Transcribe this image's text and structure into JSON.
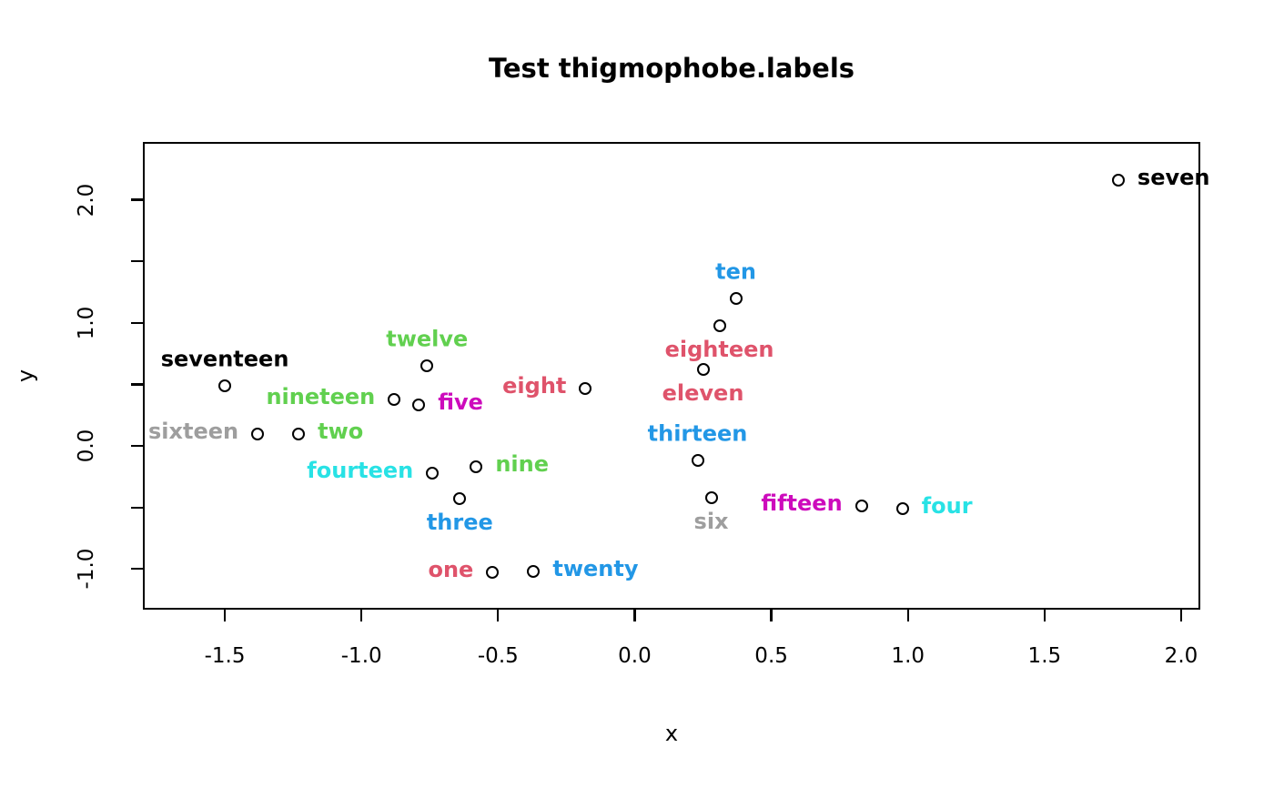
{
  "chart_data": {
    "type": "scatter",
    "title": "Test thigmophobe.labels",
    "xlabel": "x",
    "ylabel": "y",
    "xlim": [
      -1.8,
      2.07
    ],
    "ylim": [
      -1.33,
      2.47
    ],
    "grid": false,
    "legend": "none",
    "marker": "open-circle",
    "marker_color": "#000000",
    "x_ticks": [
      -1.5,
      -1.0,
      -0.5,
      0.0,
      0.5,
      1.0,
      1.5,
      2.0
    ],
    "x_tick_labels": [
      "-1.5",
      "-1.0",
      "-0.5",
      "0.0",
      "0.5",
      "1.0",
      "1.5",
      "2.0"
    ],
    "y_ticks": [
      -1.0,
      -0.5,
      0.0,
      0.5,
      1.0,
      1.5,
      2.0
    ],
    "y_tick_labels": [
      "-1.0",
      "",
      "0.0",
      "",
      "1.0",
      "",
      "2.0"
    ],
    "points": [
      {
        "label": "one",
        "x": -0.52,
        "y": -1.03,
        "color": "#DF536B",
        "label_pos": "left"
      },
      {
        "label": "two",
        "x": -1.23,
        "y": 0.1,
        "color": "#61D04F",
        "label_pos": "right"
      },
      {
        "label": "three",
        "x": -0.64,
        "y": -0.43,
        "color": "#2297E6",
        "label_pos": "below"
      },
      {
        "label": "four",
        "x": 0.98,
        "y": -0.51,
        "color": "#28E2E5",
        "label_pos": "right"
      },
      {
        "label": "five",
        "x": -0.79,
        "y": 0.33,
        "color": "#CD0BBC",
        "label_pos": "right"
      },
      {
        "label": "six",
        "x": 0.28,
        "y": -0.42,
        "color": "#9E9E9E",
        "label_pos": "below"
      },
      {
        "label": "seven",
        "x": 1.77,
        "y": 2.16,
        "color": "#000000",
        "label_pos": "right"
      },
      {
        "label": "eight",
        "x": -0.18,
        "y": 0.47,
        "color": "#DF536B",
        "label_pos": "left"
      },
      {
        "label": "nine",
        "x": -0.58,
        "y": -0.17,
        "color": "#61D04F",
        "label_pos": "right"
      },
      {
        "label": "ten",
        "x": 0.37,
        "y": 1.2,
        "color": "#2297E6",
        "label_pos": "above"
      },
      {
        "label": "eleven",
        "x": 0.25,
        "y": 0.62,
        "color": "#DF536B",
        "label_pos": "below"
      },
      {
        "label": "twelve",
        "x": -0.76,
        "y": 0.65,
        "color": "#61D04F",
        "label_pos": "above"
      },
      {
        "label": "thirteen",
        "x": 0.23,
        "y": -0.12,
        "color": "#2297E6",
        "label_pos": "above"
      },
      {
        "label": "fourteen",
        "x": -0.74,
        "y": -0.22,
        "color": "#28E2E5",
        "label_pos": "left"
      },
      {
        "label": "fifteen",
        "x": 0.83,
        "y": -0.49,
        "color": "#CD0BBC",
        "label_pos": "left"
      },
      {
        "label": "sixteen",
        "x": -1.38,
        "y": 0.1,
        "color": "#9E9E9E",
        "label_pos": "left"
      },
      {
        "label": "seventeen",
        "x": -1.5,
        "y": 0.49,
        "color": "#000000",
        "label_pos": "above"
      },
      {
        "label": "eighteen",
        "x": 0.31,
        "y": 0.98,
        "color": "#DF536B",
        "label_pos": "below"
      },
      {
        "label": "nineteen",
        "x": -0.88,
        "y": 0.38,
        "color": "#61D04F",
        "label_pos": "left"
      },
      {
        "label": "twenty",
        "x": -0.37,
        "y": -1.02,
        "color": "#2297E6",
        "label_pos": "right"
      }
    ]
  }
}
